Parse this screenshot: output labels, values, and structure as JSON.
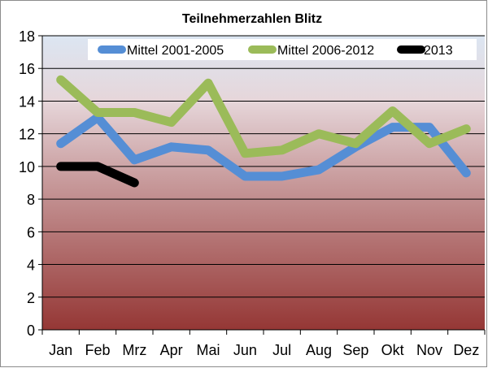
{
  "chart_data": {
    "type": "line",
    "title": "Teilnehmerzahlen Blitz",
    "xlabel": "",
    "ylabel": "",
    "categories": [
      "Jan",
      "Feb",
      "Mrz",
      "Apr",
      "Mai",
      "Jun",
      "Jul",
      "Aug",
      "Sep",
      "Okt",
      "Nov",
      "Dez"
    ],
    "ylim": [
      0,
      18
    ],
    "yticks": [
      "0",
      "2",
      "4",
      "6",
      "8",
      "10",
      "12",
      "14",
      "16",
      "18"
    ],
    "grid": true,
    "legend_position": "top-right",
    "plot_background": {
      "top": "#dce6f2",
      "bottom": "#953735"
    },
    "series": [
      {
        "name": "Mittel 2001-2005",
        "color": "#558ed5",
        "values": [
          11.4,
          13.0,
          10.4,
          11.2,
          11.0,
          9.4,
          9.4,
          9.8,
          11.2,
          12.4,
          12.4,
          9.6
        ]
      },
      {
        "name": "Mittel 2006-2012",
        "color": "#9bbb59",
        "values": [
          15.3,
          13.3,
          13.3,
          12.7,
          15.1,
          10.8,
          11.0,
          12.0,
          11.4,
          13.4,
          11.4,
          12.3
        ]
      },
      {
        "name": "2013",
        "color": "#000000",
        "values": [
          10.0,
          10.0,
          9.0,
          null,
          null,
          null,
          null,
          null,
          null,
          null,
          null,
          null
        ]
      }
    ]
  }
}
